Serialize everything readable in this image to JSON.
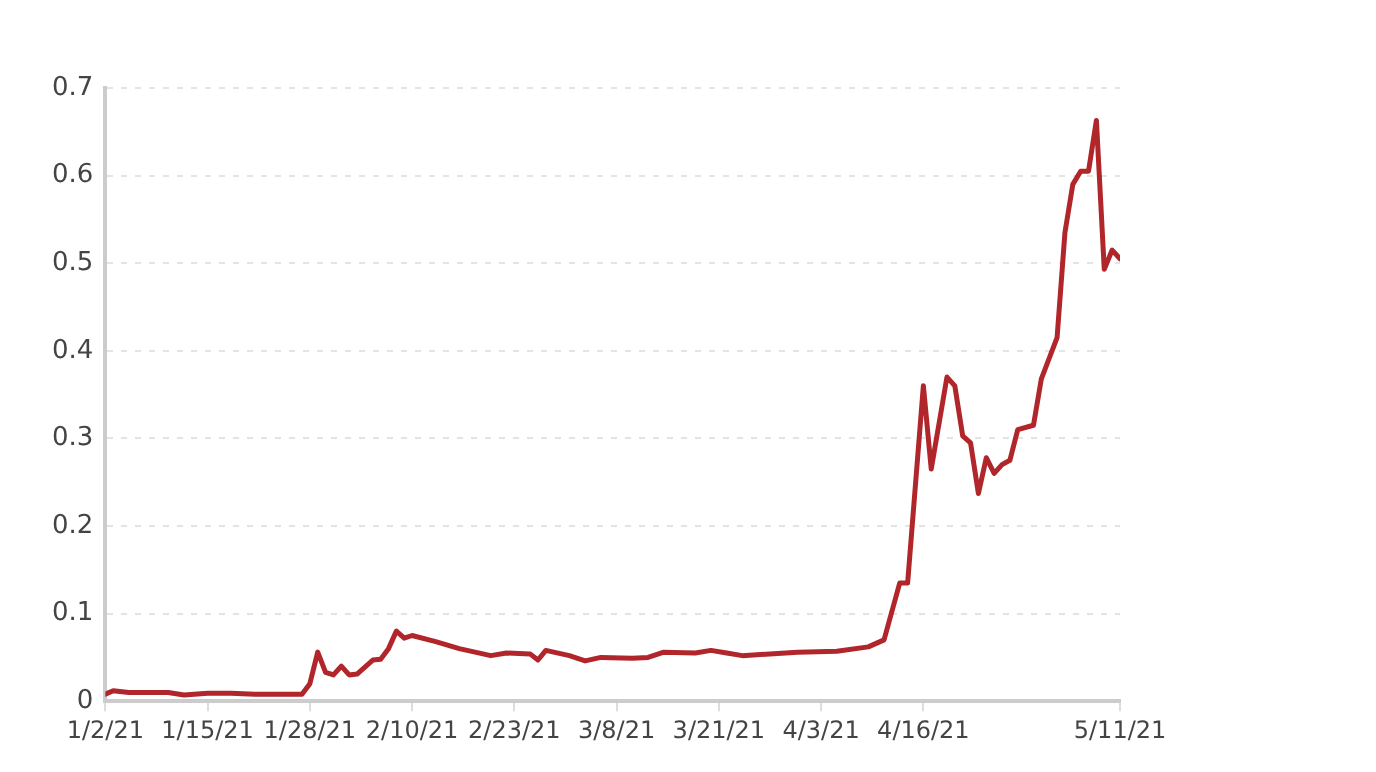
{
  "chart_data": {
    "type": "line",
    "x": [
      "--01-02",
      "--01-03",
      "--01-05",
      "--01-08",
      "--01-10",
      "--01-12",
      "--01-15",
      "--01-18",
      "--01-21",
      "--01-24",
      "--01-27",
      "--01-28",
      "--01-29",
      "--01-30",
      "--01-31",
      "--02-01",
      "--02-02",
      "--02-03",
      "--02-05",
      "--02-06",
      "--02-07",
      "--02-08",
      "--02-09",
      "--02-10",
      "--02-13",
      "--02-16",
      "--02-20",
      "--02-22",
      "--02-25",
      "--02-26",
      "--02-27",
      "--03-02",
      "--03-04",
      "--03-06",
      "--03-10",
      "--03-12",
      "--03-14",
      "--03-18",
      "--03-20",
      "--03-22",
      "--03-24",
      "--03-31",
      "--04-05",
      "--04-09",
      "--04-11",
      "--04-13",
      "--04-14",
      "--04-16",
      "--04-17",
      "--04-19",
      "--04-20",
      "--04-21",
      "--04-22",
      "--04-23",
      "--04-24",
      "--04-25",
      "--04-26",
      "--04-27",
      "--04-28",
      "--04-30",
      "--05-01",
      "--05-03",
      "--05-04",
      "--05-05",
      "--05-06",
      "--05-07",
      "--05-08",
      "--05-09",
      "--05-10",
      "--05-11"
    ],
    "series": [
      {
        "color": "#b0262a",
        "values": [
          0.008,
          0.012,
          0.01,
          0.01,
          0.01,
          0.007,
          0.009,
          0.009,
          0.008,
          0.008,
          0.008,
          0.02,
          0.056,
          0.033,
          0.03,
          0.04,
          0.03,
          0.031,
          0.047,
          0.048,
          0.06,
          0.08,
          0.072,
          0.075,
          0.068,
          0.06,
          0.052,
          0.055,
          0.054,
          0.047,
          0.058,
          0.052,
          0.046,
          0.05,
          0.049,
          0.05,
          0.056,
          0.055,
          0.058,
          0.055,
          0.052,
          0.056,
          0.057,
          0.062,
          0.07,
          0.135,
          0.135,
          0.36,
          0.265,
          0.37,
          0.36,
          0.303,
          0.295,
          0.237,
          0.278,
          0.26,
          0.27,
          0.275,
          0.31,
          0.315,
          0.368,
          0.415,
          0.535,
          0.59,
          0.605,
          0.605,
          0.663,
          0.493,
          0.515,
          0.505
        ]
      }
    ],
    "xlim": [
      "--01-02",
      "--05-11"
    ],
    "xticks": [
      {
        "value": "--01-02",
        "label": "1/2/21"
      },
      {
        "value": "--01-15",
        "label": "1/15/21"
      },
      {
        "value": "--01-28",
        "label": "1/28/21"
      },
      {
        "value": "--02-10",
        "label": "2/10/21"
      },
      {
        "value": "--02-23",
        "label": "2/23/21"
      },
      {
        "value": "--03-08",
        "label": "3/8/21"
      },
      {
        "value": "--03-21",
        "label": "3/21/21"
      },
      {
        "value": "--04-03",
        "label": "4/3/21"
      },
      {
        "value": "--04-16",
        "label": "4/16/21"
      },
      {
        "value": "--05-11",
        "label": "5/11/21"
      }
    ],
    "ylim": [
      0,
      0.7
    ],
    "yticks": [
      0,
      0.1,
      0.2,
      0.3,
      0.4,
      0.5,
      0.6,
      0.7
    ],
    "grid": "y",
    "marker": "none",
    "line_style": "solid"
  }
}
